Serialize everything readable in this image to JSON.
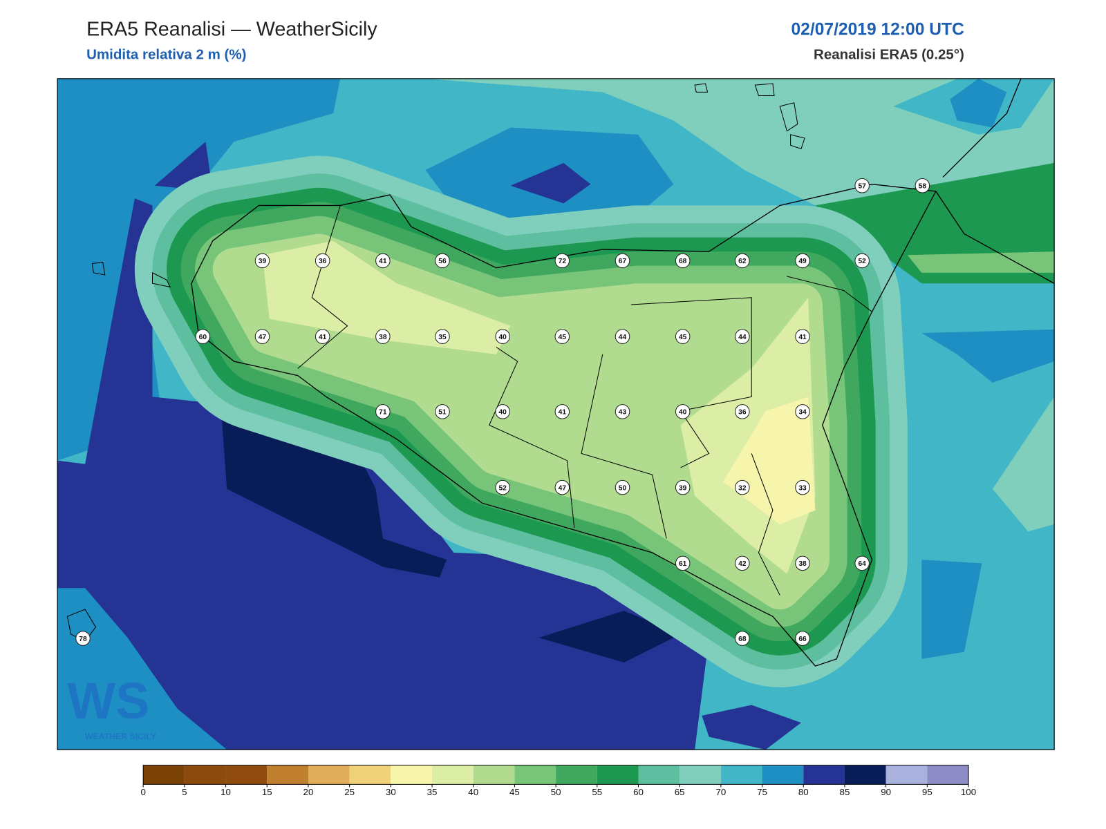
{
  "header": {
    "title": "ERA5 Reanalisi — WeatherSicily",
    "subtitle": "Umidita relativa 2 m (%)",
    "date": "02/07/2019 12:00 UTC",
    "source": "Reanalisi ERA5 (0.25°)"
  },
  "stations": [
    39,
    36,
    41,
    56,
    72,
    67,
    68,
    62,
    49,
    52,
    57,
    58,
    60,
    47,
    41,
    38,
    35,
    40,
    45,
    44,
    45,
    44,
    41,
    71,
    51,
    40,
    41,
    43,
    40,
    36,
    34,
    52,
    47,
    50,
    39,
    32,
    33,
    61,
    42,
    38,
    64,
    78,
    68,
    66
  ],
  "colorbar": {
    "ticks": [
      0,
      5,
      10,
      15,
      20,
      25,
      30,
      35,
      40,
      45,
      50,
      55,
      60,
      65,
      70,
      75,
      80,
      85,
      90,
      95,
      100
    ],
    "colors": [
      "#7a4207",
      "#8c4a0c",
      "#8f4b10",
      "#c07f2c",
      "#e0ae5a",
      "#f0d27a",
      "#f7f5ab",
      "#dceda5",
      "#b1dc8f",
      "#78c57a",
      "#3fa85e",
      "#1c9850",
      "#5dbf9f",
      "#80cfbd",
      "#41b6c6",
      "#1e8fc3",
      "#253494",
      "#081d58",
      "#a8b2dd",
      "#8d8cc6"
    ]
  },
  "logo": {
    "letters": "WS",
    "caption": "WEATHER SICILY"
  }
}
